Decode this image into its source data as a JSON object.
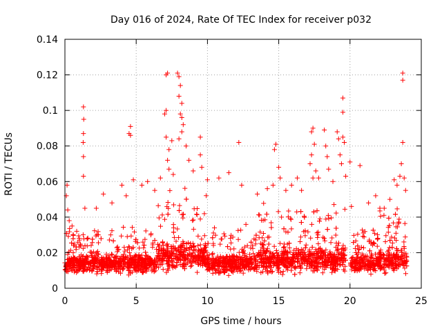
{
  "chart_data": {
    "type": "scatter",
    "title": "Day 016 of 2024, Rate Of TEC Index for receiver p032",
    "xlabel": "GPS time / hours",
    "ylabel": "ROTI / TECUs",
    "xlim": [
      0,
      25
    ],
    "ylim": [
      0,
      0.14
    ],
    "x_ticks": [
      0,
      5,
      10,
      15,
      20,
      25
    ],
    "y_ticks": [
      0,
      0.02,
      0.04,
      0.06,
      0.08,
      0.1,
      0.12,
      0.14
    ],
    "x_tick_labels": [
      "0",
      "5",
      "10",
      "15",
      "20",
      "25"
    ],
    "y_tick_labels": [
      "0",
      "0.02",
      "0.04",
      "0.06",
      "0.08",
      "0.1",
      "0.12",
      "0.14"
    ],
    "grid": true,
    "marker": "+",
    "marker_color": "#ff0000",
    "data_gap_hours": [
      19.7,
      20.0
    ],
    "series": [
      {
        "name": "ROTI",
        "color": "#ff0000",
        "points": [
          [
            0.1,
            0.052
          ],
          [
            0.15,
            0.058
          ],
          [
            0.2,
            0.044
          ],
          [
            0.3,
            0.038
          ],
          [
            0.5,
            0.035
          ],
          [
            1.3,
            0.102
          ],
          [
            1.32,
            0.095
          ],
          [
            1.3,
            0.087
          ],
          [
            1.28,
            0.082
          ],
          [
            1.3,
            0.074
          ],
          [
            1.3,
            0.063
          ],
          [
            1.4,
            0.045
          ],
          [
            2.2,
            0.045
          ],
          [
            2.7,
            0.053
          ],
          [
            3.3,
            0.048
          ],
          [
            4.0,
            0.058
          ],
          [
            4.3,
            0.052
          ],
          [
            4.6,
            0.091
          ],
          [
            4.5,
            0.087
          ],
          [
            4.6,
            0.086
          ],
          [
            4.8,
            0.061
          ],
          [
            5.4,
            0.058
          ],
          [
            5.8,
            0.06
          ],
          [
            6.3,
            0.055
          ],
          [
            6.7,
            0.062
          ],
          [
            7.1,
            0.12
          ],
          [
            7.2,
            0.121
          ],
          [
            7.1,
            0.1
          ],
          [
            7.0,
            0.098
          ],
          [
            7.1,
            0.085
          ],
          [
            7.3,
            0.078
          ],
          [
            7.2,
            0.072
          ],
          [
            7.3,
            0.067
          ],
          [
            7.5,
            0.083
          ],
          [
            7.6,
            0.064
          ],
          [
            7.9,
            0.121
          ],
          [
            8.0,
            0.119
          ],
          [
            8.1,
            0.114
          ],
          [
            8.0,
            0.108
          ],
          [
            8.2,
            0.104
          ],
          [
            8.1,
            0.098
          ],
          [
            8.2,
            0.096
          ],
          [
            8.3,
            0.092
          ],
          [
            8.2,
            0.088
          ],
          [
            8.0,
            0.084
          ],
          [
            8.5,
            0.08
          ],
          [
            8.7,
            0.072
          ],
          [
            9.0,
            0.066
          ],
          [
            9.5,
            0.085
          ],
          [
            9.5,
            0.075
          ],
          [
            9.6,
            0.068
          ],
          [
            10.0,
            0.061
          ],
          [
            10.8,
            0.062
          ],
          [
            11.5,
            0.065
          ],
          [
            12.2,
            0.082
          ],
          [
            12.4,
            0.058
          ],
          [
            13.5,
            0.053
          ],
          [
            14.2,
            0.056
          ],
          [
            14.6,
            0.058
          ],
          [
            14.8,
            0.081
          ],
          [
            14.7,
            0.078
          ],
          [
            15.0,
            0.068
          ],
          [
            15.1,
            0.062
          ],
          [
            15.5,
            0.055
          ],
          [
            15.9,
            0.058
          ],
          [
            16.3,
            0.062
          ],
          [
            16.6,
            0.055
          ],
          [
            17.2,
            0.07
          ],
          [
            17.4,
            0.09
          ],
          [
            17.3,
            0.088
          ],
          [
            17.5,
            0.081
          ],
          [
            17.3,
            0.075
          ],
          [
            17.6,
            0.066
          ],
          [
            17.4,
            0.062
          ],
          [
            17.8,
            0.062
          ],
          [
            18.2,
            0.089
          ],
          [
            18.3,
            0.08
          ],
          [
            18.4,
            0.074
          ],
          [
            18.5,
            0.067
          ],
          [
            18.8,
            0.06
          ],
          [
            19.1,
            0.088
          ],
          [
            19.2,
            0.084
          ],
          [
            19.3,
            0.075
          ],
          [
            19.5,
            0.107
          ],
          [
            19.5,
            0.099
          ],
          [
            19.5,
            0.085
          ],
          [
            19.6,
            0.082
          ],
          [
            19.4,
            0.07
          ],
          [
            19.7,
            0.063
          ],
          [
            20.0,
            0.071
          ],
          [
            20.1,
            0.046
          ],
          [
            20.7,
            0.069
          ],
          [
            21.3,
            0.048
          ],
          [
            21.8,
            0.052
          ],
          [
            22.4,
            0.045
          ],
          [
            22.8,
            0.05
          ],
          [
            23.1,
            0.061
          ],
          [
            23.3,
            0.058
          ],
          [
            23.5,
            0.063
          ],
          [
            23.6,
            0.07
          ],
          [
            23.7,
            0.121
          ],
          [
            23.7,
            0.117
          ],
          [
            23.7,
            0.082
          ],
          [
            23.8,
            0.062
          ],
          [
            23.9,
            0.055
          ]
        ]
      }
    ]
  }
}
